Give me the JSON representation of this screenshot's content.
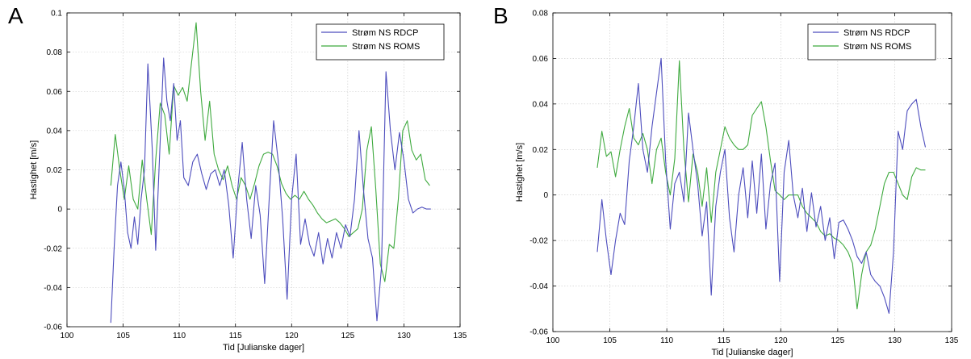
{
  "panels": [
    {
      "letter": "A"
    },
    {
      "letter": "B"
    }
  ],
  "colors": {
    "rdcp": "#4d4dbd",
    "roms": "#3faa3f",
    "grid": "#c8c8c8",
    "axis": "#000000"
  },
  "chart_data": [
    {
      "type": "line",
      "title": "",
      "xlabel": "Tid [Julianske dager]",
      "ylabel": "Hastighet [m/s]",
      "xlim": [
        100,
        135
      ],
      "ylim": [
        -0.06,
        0.1
      ],
      "xticks": [
        100,
        105,
        110,
        115,
        120,
        125,
        130,
        135
      ],
      "yticks": [
        -0.06,
        -0.04,
        -0.02,
        0,
        0.02,
        0.04,
        0.06,
        0.08,
        0.1
      ],
      "ytick_labels": [
        "-0.06",
        "-0.04",
        "-0.02",
        "0",
        "0.02",
        "0.04",
        "0.06",
        "0.08",
        "0.1"
      ],
      "grid": true,
      "legend_position": "top-right",
      "series": [
        {
          "name": "Strøm NS RDCP",
          "color": "#4d4dbd",
          "x": [
            103.9,
            104.2,
            104.5,
            104.8,
            105.1,
            105.4,
            105.7,
            106.0,
            106.3,
            106.6,
            106.9,
            107.2,
            107.6,
            107.9,
            108.3,
            108.6,
            108.9,
            109.2,
            109.5,
            109.8,
            110.1,
            110.4,
            110.8,
            111.2,
            111.6,
            112.0,
            112.4,
            112.8,
            113.2,
            113.6,
            114.0,
            114.4,
            114.8,
            115.2,
            115.6,
            116.0,
            116.4,
            116.8,
            117.2,
            117.6,
            118.0,
            118.4,
            118.8,
            119.2,
            119.6,
            120.0,
            120.4,
            120.8,
            121.2,
            121.6,
            122.0,
            122.4,
            122.8,
            123.2,
            123.6,
            124.0,
            124.4,
            124.8,
            125.2,
            125.6,
            126.0,
            126.4,
            126.8,
            127.2,
            127.6,
            128.0,
            128.4,
            128.8,
            129.2,
            129.6,
            130.0,
            130.4,
            130.8,
            131.2,
            131.6,
            132.0,
            132.4
          ],
          "y": [
            -0.058,
            -0.02,
            0.012,
            0.024,
            0.01,
            -0.012,
            -0.02,
            -0.004,
            -0.018,
            0.005,
            0.02,
            0.074,
            0.03,
            -0.021,
            0.035,
            0.077,
            0.055,
            0.045,
            0.064,
            0.035,
            0.045,
            0.016,
            0.012,
            0.024,
            0.028,
            0.018,
            0.01,
            0.018,
            0.02,
            0.012,
            0.02,
            0.002,
            -0.025,
            0.01,
            0.034,
            0.005,
            -0.015,
            0.012,
            -0.003,
            -0.038,
            0.005,
            0.045,
            0.025,
            -0.005,
            -0.046,
            0.005,
            0.028,
            -0.018,
            -0.005,
            -0.018,
            -0.024,
            -0.012,
            -0.028,
            -0.015,
            -0.025,
            -0.012,
            -0.02,
            -0.008,
            -0.014,
            0.005,
            0.04,
            0.01,
            -0.015,
            -0.025,
            -0.057,
            -0.03,
            0.07,
            0.04,
            0.02,
            0.039,
            0.025,
            0.005,
            -0.002,
            0.0,
            0.001,
            0.0,
            0.0
          ]
        },
        {
          "name": "Strøm NS ROMS",
          "color": "#3faa3f",
          "x": [
            103.9,
            104.3,
            104.7,
            105.1,
            105.5,
            105.9,
            106.3,
            106.7,
            107.1,
            107.5,
            107.9,
            108.3,
            108.7,
            109.1,
            109.5,
            109.9,
            110.3,
            110.7,
            111.1,
            111.5,
            111.9,
            112.3,
            112.7,
            113.1,
            113.5,
            113.9,
            114.3,
            114.7,
            115.1,
            115.5,
            115.9,
            116.3,
            116.7,
            117.1,
            117.5,
            117.9,
            118.3,
            118.7,
            119.1,
            119.5,
            119.9,
            120.3,
            120.7,
            121.1,
            121.5,
            121.9,
            122.3,
            122.7,
            123.1,
            123.5,
            123.9,
            124.3,
            124.7,
            125.1,
            125.5,
            125.9,
            126.3,
            126.7,
            127.1,
            127.5,
            127.9,
            128.3,
            128.7,
            129.1,
            129.5,
            129.9,
            130.3,
            130.7,
            131.1,
            131.5,
            131.9,
            132.3
          ],
          "y": [
            0.012,
            0.038,
            0.02,
            0.005,
            0.022,
            0.005,
            0.0,
            0.025,
            0.005,
            -0.013,
            0.025,
            0.054,
            0.048,
            0.028,
            0.063,
            0.058,
            0.062,
            0.055,
            0.075,
            0.095,
            0.06,
            0.035,
            0.055,
            0.028,
            0.02,
            0.015,
            0.022,
            0.012,
            0.005,
            0.016,
            0.012,
            0.005,
            0.013,
            0.022,
            0.028,
            0.029,
            0.028,
            0.022,
            0.013,
            0.008,
            0.005,
            0.007,
            0.005,
            0.009,
            0.005,
            0.002,
            -0.002,
            -0.005,
            -0.007,
            -0.006,
            -0.005,
            -0.007,
            -0.01,
            -0.014,
            -0.012,
            -0.01,
            0.0,
            0.03,
            0.042,
            0.01,
            -0.028,
            -0.037,
            -0.018,
            -0.02,
            0.005,
            0.04,
            0.045,
            0.03,
            0.025,
            0.028,
            0.015,
            0.012
          ]
        }
      ]
    },
    {
      "type": "line",
      "title": "",
      "xlabel": "Tid [Julianske dager]",
      "ylabel": "Hastighet [m/s]",
      "xlim": [
        100,
        135
      ],
      "ylim": [
        -0.06,
        0.08
      ],
      "xticks": [
        100,
        105,
        110,
        115,
        120,
        125,
        130,
        135
      ],
      "yticks": [
        -0.06,
        -0.04,
        -0.02,
        0,
        0.02,
        0.04,
        0.06,
        0.08
      ],
      "ytick_labels": [
        "-0.06",
        "-0.04",
        "-0.02",
        "0",
        "0.02",
        "0.04",
        "0.06",
        "0.08"
      ],
      "grid": true,
      "legend_position": "top-right",
      "series": [
        {
          "name": "Strøm NS RDCP",
          "color": "#4d4dbd",
          "x": [
            103.9,
            104.3,
            104.7,
            105.1,
            105.5,
            105.9,
            106.3,
            106.7,
            107.1,
            107.5,
            107.9,
            108.3,
            108.7,
            109.1,
            109.5,
            109.9,
            110.3,
            110.7,
            111.1,
            111.5,
            111.9,
            112.3,
            112.7,
            113.1,
            113.5,
            113.9,
            114.3,
            114.7,
            115.1,
            115.5,
            115.9,
            116.3,
            116.7,
            117.1,
            117.5,
            117.9,
            118.3,
            118.7,
            119.1,
            119.5,
            119.9,
            120.3,
            120.7,
            121.1,
            121.5,
            121.9,
            122.3,
            122.7,
            123.1,
            123.5,
            123.9,
            124.3,
            124.7,
            125.1,
            125.5,
            125.9,
            126.3,
            126.7,
            127.1,
            127.5,
            127.9,
            128.3,
            128.7,
            129.1,
            129.5,
            129.9,
            130.3,
            130.7,
            131.1,
            131.5,
            131.9,
            132.3,
            132.7
          ],
          "y": [
            -0.025,
            -0.002,
            -0.02,
            -0.035,
            -0.02,
            -0.008,
            -0.013,
            0.015,
            0.03,
            0.049,
            0.02,
            0.01,
            0.03,
            0.045,
            0.06,
            0.015,
            -0.015,
            0.005,
            0.01,
            -0.003,
            0.036,
            0.02,
            0.005,
            -0.018,
            -0.003,
            -0.044,
            -0.005,
            0.01,
            0.02,
            -0.01,
            -0.025,
            0.0,
            0.012,
            -0.01,
            0.015,
            -0.008,
            0.018,
            -0.015,
            0.005,
            0.014,
            -0.038,
            0.01,
            0.024,
            0.0,
            -0.01,
            0.003,
            -0.016,
            0.001,
            -0.014,
            -0.005,
            -0.02,
            -0.01,
            -0.028,
            -0.012,
            -0.011,
            -0.015,
            -0.02,
            -0.027,
            -0.03,
            -0.025,
            -0.035,
            -0.038,
            -0.04,
            -0.045,
            -0.052,
            -0.025,
            0.028,
            0.02,
            0.037,
            0.04,
            0.042,
            0.03,
            0.021
          ]
        },
        {
          "name": "Strøm NS ROMS",
          "color": "#3faa3f",
          "x": [
            103.9,
            104.3,
            104.7,
            105.1,
            105.5,
            105.9,
            106.3,
            106.7,
            107.1,
            107.5,
            107.9,
            108.3,
            108.7,
            109.1,
            109.5,
            109.9,
            110.3,
            110.7,
            111.1,
            111.5,
            111.9,
            112.3,
            112.7,
            113.1,
            113.5,
            113.9,
            114.3,
            114.7,
            115.1,
            115.5,
            115.9,
            116.3,
            116.7,
            117.1,
            117.5,
            117.9,
            118.3,
            118.7,
            119.1,
            119.5,
            119.9,
            120.3,
            120.7,
            121.1,
            121.5,
            121.9,
            122.3,
            122.7,
            123.1,
            123.5,
            123.9,
            124.3,
            124.7,
            125.1,
            125.5,
            125.9,
            126.3,
            126.7,
            127.1,
            127.5,
            127.9,
            128.3,
            128.7,
            129.1,
            129.5,
            129.9,
            130.3,
            130.7,
            131.1,
            131.5,
            131.9,
            132.3,
            132.7
          ],
          "y": [
            0.012,
            0.028,
            0.017,
            0.019,
            0.008,
            0.02,
            0.03,
            0.038,
            0.025,
            0.022,
            0.027,
            0.02,
            0.005,
            0.02,
            0.025,
            0.01,
            0.0,
            0.016,
            0.059,
            0.02,
            -0.003,
            0.018,
            0.01,
            -0.005,
            0.012,
            -0.012,
            0.01,
            0.02,
            0.03,
            0.025,
            0.022,
            0.02,
            0.02,
            0.022,
            0.035,
            0.038,
            0.041,
            0.03,
            0.015,
            0.002,
            0.0,
            -0.002,
            0.0,
            0.0,
            0.0,
            -0.005,
            -0.008,
            -0.01,
            -0.012,
            -0.016,
            -0.018,
            -0.017,
            -0.019,
            -0.02,
            -0.022,
            -0.025,
            -0.03,
            -0.05,
            -0.035,
            -0.025,
            -0.022,
            -0.015,
            -0.005,
            0.005,
            0.01,
            0.01,
            0.005,
            0.0,
            -0.002,
            0.008,
            0.012,
            0.011,
            0.011
          ]
        }
      ]
    }
  ]
}
